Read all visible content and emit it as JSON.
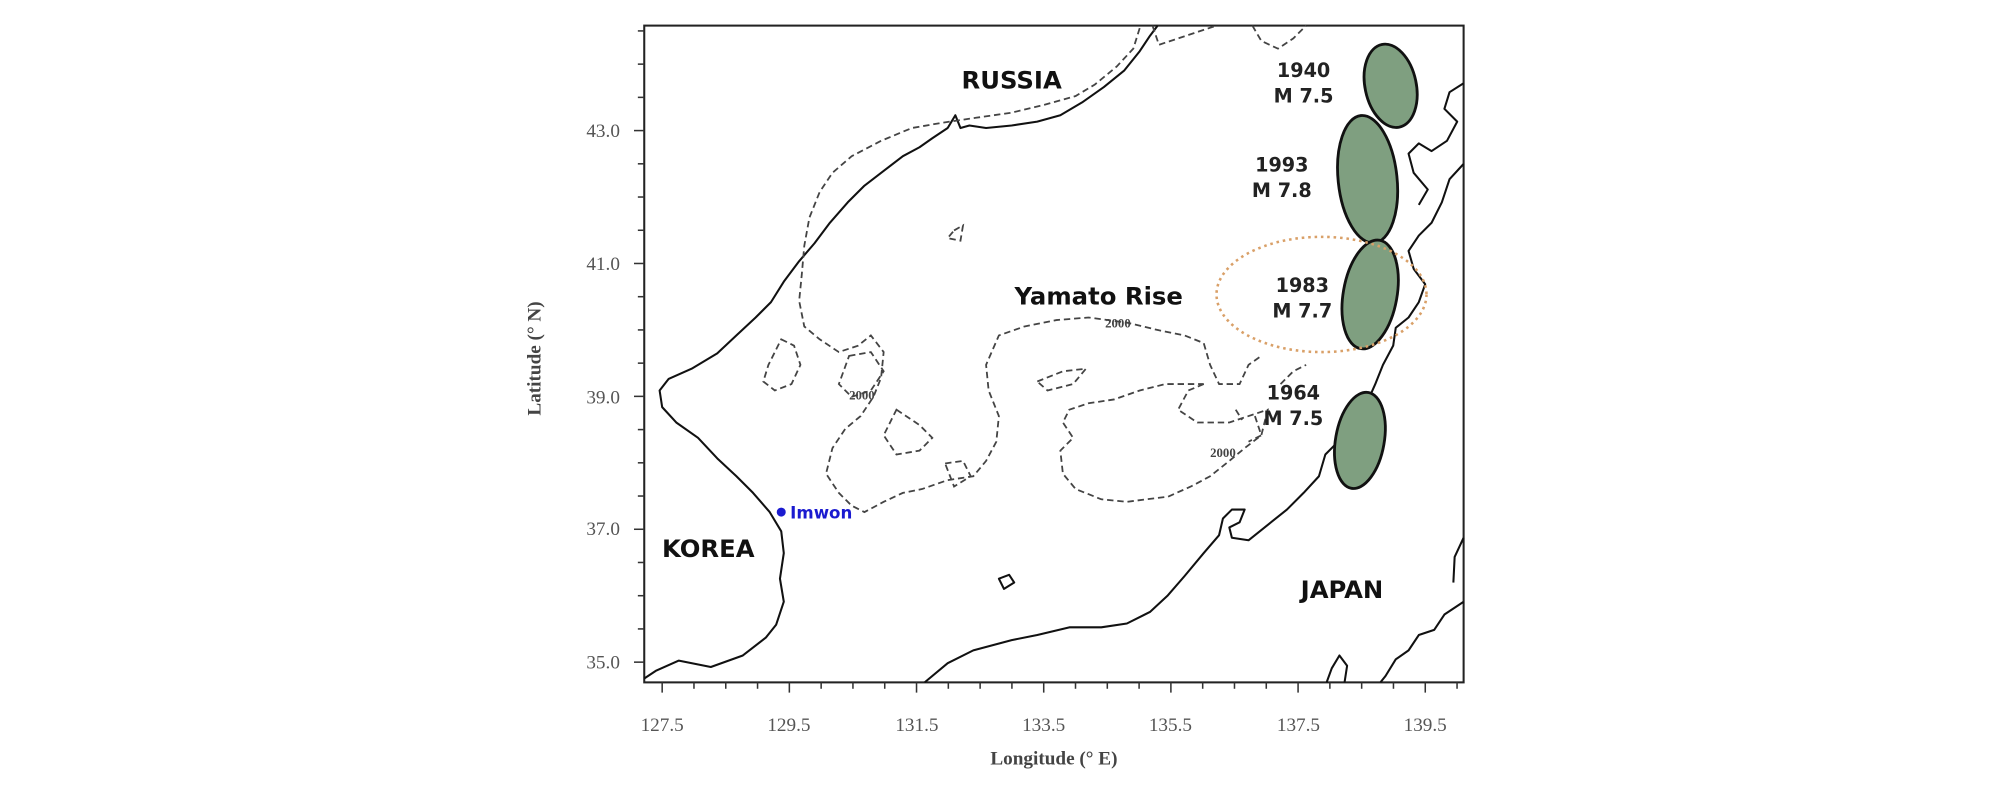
{
  "axes": {
    "xlabel": "Longitude (° E)",
    "ylabel": "Latitude (° N)",
    "x_ticks": [
      "127.5",
      "129.5",
      "131.5",
      "133.5",
      "135.5",
      "137.5",
      "139.5"
    ],
    "y_ticks": [
      "43.0",
      "41.0",
      "39.0",
      "37.0",
      "35.0"
    ]
  },
  "places": {
    "russia": "RUSSIA",
    "korea": "KOREA",
    "japan": "JAPAN",
    "yamato": "Yamato Rise",
    "imwon": "Imwon"
  },
  "contour_label": "2000",
  "earthquakes": [
    {
      "year": "1940",
      "magnitude": "M 7.5"
    },
    {
      "year": "1993",
      "magnitude": "M 7.8"
    },
    {
      "year": "1983",
      "magnitude": "M 7.7",
      "highlighted": true
    },
    {
      "year": "1964",
      "magnitude": "M 7.5"
    }
  ],
  "colors": {
    "rupture_fill": "#7f9f80",
    "highlight_ring": "#d9a068",
    "imwon_marker": "#1a1ad0"
  }
}
